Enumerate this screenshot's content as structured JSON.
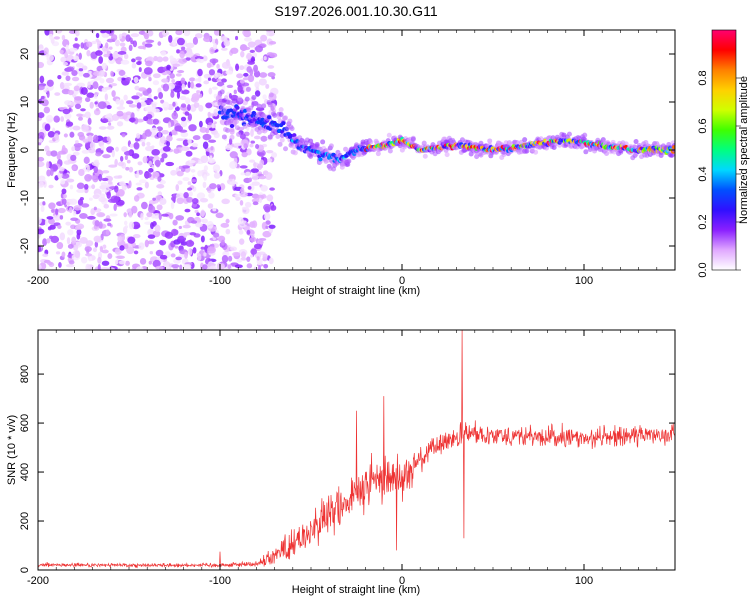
{
  "title": "S197.2026.001.10.30.G11",
  "chart_data": [
    {
      "type": "heatmap",
      "name": "spectrogram",
      "xlabel": "Height of straight line (km)",
      "ylabel": "Frequency (Hz)",
      "xlim": [
        -200,
        150
      ],
      "ylim": [
        -25,
        25
      ],
      "xticks": [
        -200,
        -100,
        0,
        100
      ],
      "yticks": [
        -20,
        -10,
        0,
        10,
        20
      ],
      "colorbar": {
        "label": "Normalized spectral amplitude",
        "range": [
          0.0,
          1.0
        ],
        "ticks": [
          0.0,
          0.2,
          0.4,
          0.6,
          0.8
        ],
        "colors": [
          "#ffffff",
          "#e0a8ff",
          "#8a20ff",
          "#3010ff",
          "#0050ff",
          "#00d8ff",
          "#00ff80",
          "#40ff00",
          "#d0ff00",
          "#ffd000",
          "#ff8000",
          "#ff0000",
          "#ff0070"
        ]
      },
      "noise_region_km": [
        -200,
        -75
      ],
      "signal_trace": [
        {
          "x": -100,
          "f": 8
        },
        {
          "x": -85,
          "f": 7
        },
        {
          "x": -75,
          "f": 6
        },
        {
          "x": -65,
          "f": 4
        },
        {
          "x": -55,
          "f": 1
        },
        {
          "x": -45,
          "f": -1
        },
        {
          "x": -35,
          "f": -2
        },
        {
          "x": -25,
          "f": 0
        },
        {
          "x": -10,
          "f": 1
        },
        {
          "x": 0,
          "f": 2
        },
        {
          "x": 10,
          "f": 0
        },
        {
          "x": 30,
          "f": 1
        },
        {
          "x": 50,
          "f": 0
        },
        {
          "x": 70,
          "f": 1
        },
        {
          "x": 90,
          "f": 2
        },
        {
          "x": 110,
          "f": 1
        },
        {
          "x": 130,
          "f": 0
        },
        {
          "x": 150,
          "f": 0
        }
      ]
    },
    {
      "type": "line",
      "name": "snr",
      "xlabel": "Height of straight line (km)",
      "ylabel": "SNR (10 * v/v)",
      "xlim": [
        -200,
        150
      ],
      "ylim": [
        0,
        980
      ],
      "xticks": [
        -200,
        -100,
        0,
        100
      ],
      "yticks": [
        0,
        200,
        400,
        600,
        800
      ],
      "color": "#ee3333",
      "envelope": [
        {
          "x": -200,
          "mean": 20,
          "noise": 15
        },
        {
          "x": -150,
          "mean": 20,
          "noise": 15
        },
        {
          "x": -100,
          "mean": 20,
          "noise": 15
        },
        {
          "x": -80,
          "mean": 25,
          "noise": 20
        },
        {
          "x": -70,
          "mean": 60,
          "noise": 80
        },
        {
          "x": -60,
          "mean": 110,
          "noise": 110
        },
        {
          "x": -50,
          "mean": 160,
          "noise": 130
        },
        {
          "x": -40,
          "mean": 220,
          "noise": 160
        },
        {
          "x": -30,
          "mean": 280,
          "noise": 170
        },
        {
          "x": -20,
          "mean": 340,
          "noise": 170
        },
        {
          "x": -10,
          "mean": 380,
          "noise": 170
        },
        {
          "x": 0,
          "mean": 380,
          "noise": 140
        },
        {
          "x": 10,
          "mean": 450,
          "noise": 100
        },
        {
          "x": 20,
          "mean": 510,
          "noise": 80
        },
        {
          "x": 30,
          "mean": 540,
          "noise": 80
        },
        {
          "x": 40,
          "mean": 560,
          "noise": 80
        },
        {
          "x": 60,
          "mean": 550,
          "noise": 80
        },
        {
          "x": 80,
          "mean": 540,
          "noise": 80
        },
        {
          "x": 100,
          "mean": 540,
          "noise": 75
        },
        {
          "x": 120,
          "mean": 545,
          "noise": 75
        },
        {
          "x": 150,
          "mean": 560,
          "noise": 75
        }
      ],
      "spikes": [
        {
          "x": -10,
          "value": 710
        },
        {
          "x": -25,
          "value": 650
        },
        {
          "x": 33,
          "value": 980
        },
        {
          "x": 34,
          "value": 130
        },
        {
          "x": -3,
          "value": 80
        },
        {
          "x": -100,
          "value": 75
        }
      ]
    }
  ]
}
